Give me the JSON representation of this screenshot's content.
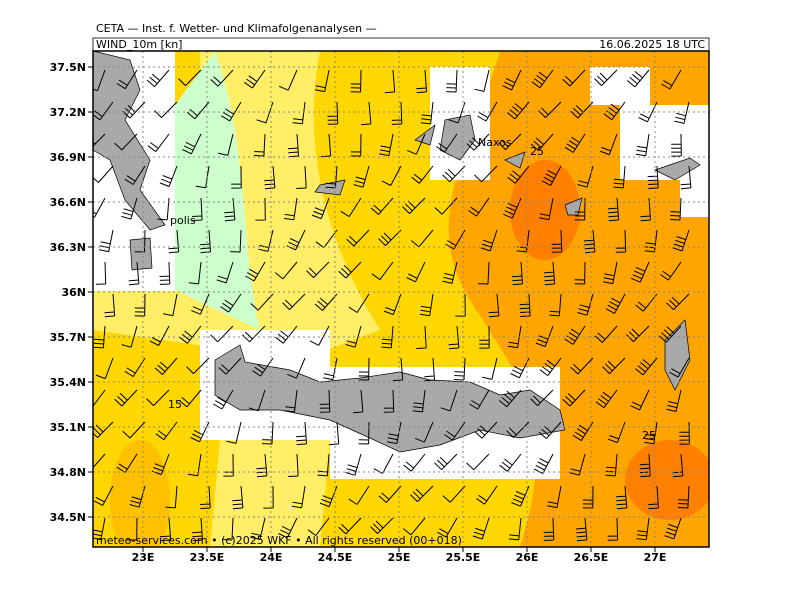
{
  "header": {
    "title": "CETA — Inst. f. Wetter- und Klimafolgenanalysen —",
    "field": "WIND_10m [kn]",
    "datetime": "16.06.2025 18 UTC"
  },
  "map": {
    "lat_labels": [
      "37.5N",
      "37.2N",
      "36.9N",
      "36.6N",
      "36.3N",
      "36N",
      "35.7N",
      "35.4N",
      "35.1N",
      "34.8N",
      "34.5N"
    ],
    "lon_labels": [
      "23E",
      "23.5E",
      "24E",
      "24.5E",
      "25E",
      "25.5E",
      "26E",
      "26.5E",
      "27E"
    ],
    "contour_labels": [
      "15",
      "25",
      "25"
    ],
    "places": [
      "Naxos",
      "polis"
    ]
  },
  "footer": "meteo-services.com • (c)2025 WKF • All rights reserved (00+018)"
}
